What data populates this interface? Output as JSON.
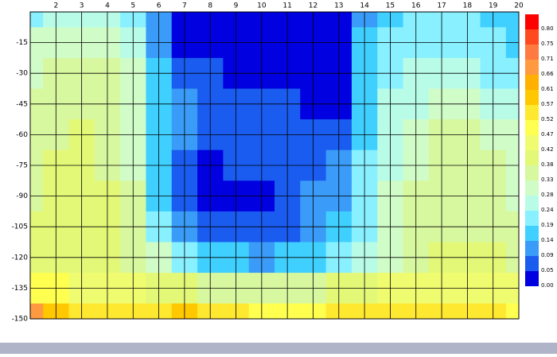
{
  "chart_data": {
    "type": "heatmap",
    "x": [
      1,
      2,
      3,
      4,
      5,
      6,
      7,
      8,
      9,
      10,
      11,
      12,
      13,
      14,
      15,
      16,
      17,
      18,
      19,
      20
    ],
    "y": [
      0,
      -15,
      -30,
      -45,
      -60,
      -75,
      -90,
      -105,
      -120,
      -135,
      -150
    ],
    "z": [
      [
        0.22,
        0.24,
        0.26,
        0.24,
        0.2,
        0.1,
        0.02,
        0.02,
        0.02,
        0.02,
        0.02,
        0.02,
        0.02,
        0.1,
        0.18,
        0.19,
        0.19,
        0.19,
        0.17,
        0.16
      ],
      [
        0.28,
        0.3,
        0.32,
        0.3,
        0.24,
        0.12,
        0.04,
        0.02,
        0.02,
        0.02,
        0.03,
        0.02,
        0.02,
        0.14,
        0.2,
        0.21,
        0.21,
        0.2,
        0.19,
        0.18
      ],
      [
        0.3,
        0.33,
        0.35,
        0.34,
        0.28,
        0.14,
        0.08,
        0.06,
        0.04,
        0.02,
        0.03,
        0.04,
        0.03,
        0.16,
        0.22,
        0.24,
        0.25,
        0.24,
        0.22,
        0.2
      ],
      [
        0.33,
        0.35,
        0.36,
        0.36,
        0.3,
        0.14,
        0.09,
        0.08,
        0.07,
        0.08,
        0.08,
        0.04,
        0.04,
        0.18,
        0.24,
        0.27,
        0.3,
        0.29,
        0.26,
        0.24
      ],
      [
        0.35,
        0.37,
        0.38,
        0.37,
        0.32,
        0.16,
        0.09,
        0.08,
        0.08,
        0.08,
        0.08,
        0.06,
        0.08,
        0.18,
        0.25,
        0.3,
        0.34,
        0.34,
        0.32,
        0.28
      ],
      [
        0.36,
        0.38,
        0.38,
        0.37,
        0.32,
        0.16,
        0.06,
        0.04,
        0.05,
        0.05,
        0.06,
        0.08,
        0.1,
        0.19,
        0.27,
        0.32,
        0.35,
        0.36,
        0.34,
        0.3
      ],
      [
        0.37,
        0.38,
        0.38,
        0.38,
        0.34,
        0.18,
        0.07,
        0.04,
        0.04,
        0.04,
        0.05,
        0.09,
        0.12,
        0.19,
        0.28,
        0.33,
        0.35,
        0.36,
        0.35,
        0.32
      ],
      [
        0.38,
        0.39,
        0.39,
        0.39,
        0.35,
        0.22,
        0.1,
        0.06,
        0.06,
        0.06,
        0.08,
        0.12,
        0.14,
        0.2,
        0.3,
        0.34,
        0.36,
        0.37,
        0.36,
        0.34
      ],
      [
        0.4,
        0.41,
        0.4,
        0.4,
        0.37,
        0.3,
        0.2,
        0.16,
        0.14,
        0.13,
        0.14,
        0.18,
        0.22,
        0.26,
        0.32,
        0.36,
        0.38,
        0.39,
        0.38,
        0.36
      ],
      [
        0.48,
        0.47,
        0.45,
        0.45,
        0.44,
        0.4,
        0.38,
        0.37,
        0.36,
        0.36,
        0.36,
        0.36,
        0.38,
        0.4,
        0.42,
        0.44,
        0.44,
        0.45,
        0.44,
        0.42
      ],
      [
        0.68,
        0.6,
        0.55,
        0.55,
        0.55,
        0.56,
        0.57,
        0.56,
        0.52,
        0.5,
        0.49,
        0.5,
        0.52,
        0.52,
        0.52,
        0.54,
        0.56,
        0.55,
        0.53,
        0.5
      ]
    ],
    "xlim": [
      1,
      20
    ],
    "ylim": [
      -150,
      0
    ],
    "xticks": [
      2,
      3,
      4,
      5,
      6,
      7,
      8,
      9,
      10,
      11,
      12,
      13,
      14,
      15,
      16,
      17,
      18,
      19,
      20
    ],
    "yticks": [
      -15,
      -30,
      -45,
      -60,
      -75,
      -90,
      -105,
      -120,
      -135,
      -150
    ],
    "colorbar": [
      {
        "value": 0.0,
        "label": "0.00",
        "color": "#0000e0"
      },
      {
        "value": 0.05,
        "label": "0.05",
        "color": "#1a5cf0"
      },
      {
        "value": 0.09,
        "label": "0.09",
        "color": "#3a9cf8"
      },
      {
        "value": 0.14,
        "label": "0.14",
        "color": "#40d0ff"
      },
      {
        "value": 0.19,
        "label": "0.19",
        "color": "#88f0ff"
      },
      {
        "value": 0.24,
        "label": "0.24",
        "color": "#b8fce8"
      },
      {
        "value": 0.28,
        "label": "0.28",
        "color": "#d0fcc8"
      },
      {
        "value": 0.33,
        "label": "0.33",
        "color": "#d8f8a0"
      },
      {
        "value": 0.38,
        "label": "0.38",
        "color": "#e4f878"
      },
      {
        "value": 0.42,
        "label": "0.42",
        "color": "#f0fc70"
      },
      {
        "value": 0.47,
        "label": "0.47",
        "color": "#ffff50"
      },
      {
        "value": 0.52,
        "label": "0.52",
        "color": "#ffe830"
      },
      {
        "value": 0.57,
        "label": "0.57",
        "color": "#ffc800"
      },
      {
        "value": 0.61,
        "label": "0.61",
        "color": "#ffb000"
      },
      {
        "value": 0.66,
        "label": "0.66",
        "color": "#ff9a40"
      },
      {
        "value": 0.71,
        "label": "0.71",
        "color": "#ff7a40"
      },
      {
        "value": 0.75,
        "label": "0.75",
        "color": "#ff4a20"
      },
      {
        "value": 0.8,
        "label": "0.80",
        "color": "#ff0000"
      }
    ]
  }
}
